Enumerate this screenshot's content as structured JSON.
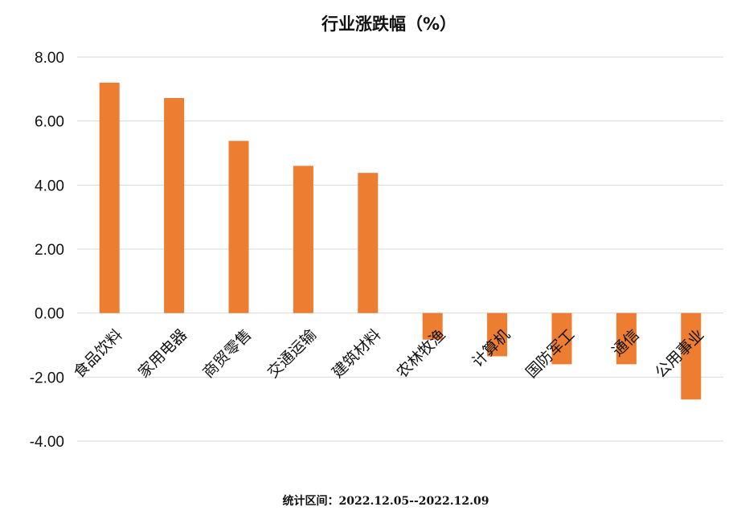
{
  "chart_data": {
    "type": "bar",
    "title": "行业涨跌幅（%）",
    "categories": [
      "食品饮料",
      "家用电器",
      "商贸零售",
      "交通运输",
      "建筑材料",
      "农林牧渔",
      "计算机",
      "国防军工",
      "通信",
      "公用事业"
    ],
    "values": [
      7.2,
      6.72,
      5.38,
      4.6,
      4.38,
      -0.83,
      -1.35,
      -1.6,
      -1.6,
      -2.7
    ],
    "ylim": [
      -4,
      8
    ],
    "yticks": [
      "8.00",
      "6.00",
      "4.00",
      "2.00",
      "0.00",
      "-2.00",
      "-4.00"
    ],
    "xlabel": "",
    "ylabel": "",
    "grid": true,
    "colors": {
      "bar": "#ED7D31",
      "grid": "#D9D9D9",
      "text": "#111111"
    }
  },
  "footnote": "统计区间：2022.12.05--2022.12.09"
}
